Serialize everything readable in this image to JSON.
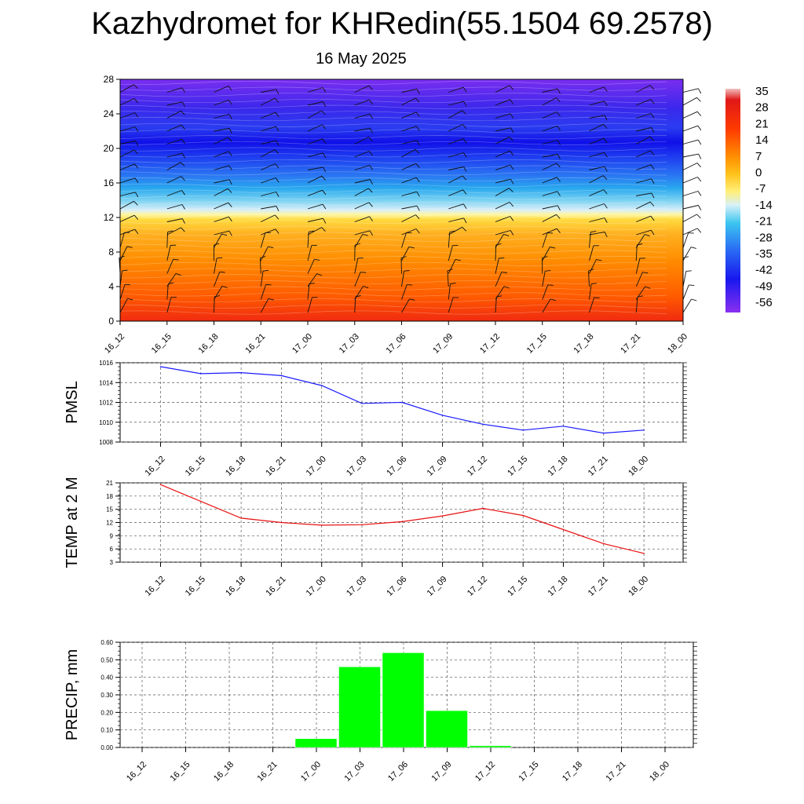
{
  "title": "Kazhydromet for KHRedin(55.1504 69.2578)",
  "subtitle": "16 May 2025",
  "time_labels": [
    "16_12",
    "16_15",
    "16_18",
    "16_21",
    "17_00",
    "17_03",
    "17_06",
    "17_09",
    "17_12",
    "17_15",
    "17_18",
    "17_21",
    "18_00"
  ],
  "colors": {
    "pmsl_line": "#1a1aff",
    "temp_line": "#e81010",
    "precip_bar": "#00ff00",
    "grid": "#555555"
  },
  "chart_data": [
    {
      "type": "heatmap",
      "title": "",
      "xlabel": "",
      "ylabel": "",
      "ylim": [
        0,
        28
      ],
      "y_ticks": [
        "0",
        "4",
        "8",
        "12",
        "16",
        "20",
        "24",
        "28"
      ],
      "categories": [
        "16_12",
        "16_15",
        "16_18",
        "16_21",
        "17_00",
        "17_03",
        "17_06",
        "17_09",
        "17_12",
        "17_15",
        "17_18",
        "17_21",
        "18_00"
      ],
      "colorbar_labels": [
        "35",
        "28",
        "21",
        "14",
        "7",
        "0",
        "-7",
        "-14",
        "-21",
        "-28",
        "-35",
        "-42",
        "-49",
        "-56"
      ],
      "colorbar_range": [
        -60,
        38
      ],
      "temperature_profile": [
        {
          "y": 0,
          "value": 21
        },
        {
          "y": 2,
          "value": 18
        },
        {
          "y": 4,
          "value": 14
        },
        {
          "y": 6,
          "value": 11
        },
        {
          "y": 8,
          "value": 8
        },
        {
          "y": 10,
          "value": 4
        },
        {
          "y": 12,
          "value": 0
        },
        {
          "y": 13,
          "value": -10
        },
        {
          "y": 14,
          "value": -20
        },
        {
          "y": 15,
          "value": -27
        },
        {
          "y": 16,
          "value": -33
        },
        {
          "y": 18,
          "value": -45
        },
        {
          "y": 20,
          "value": -56
        },
        {
          "y": 22,
          "value": -52
        },
        {
          "y": 24,
          "value": -55
        },
        {
          "y": 26,
          "value": -58
        },
        {
          "y": 28,
          "value": -60
        }
      ]
    },
    {
      "type": "line",
      "ylabel": "PMSL",
      "ylim": [
        1008,
        1016
      ],
      "y_ticks": [
        "1008",
        "1010",
        "1012",
        "1014",
        "1016"
      ],
      "x": [
        "16_12",
        "16_15",
        "16_18",
        "16_21",
        "17_00",
        "17_03",
        "17_06",
        "17_09",
        "17_12",
        "17_15",
        "17_18",
        "17_21",
        "18_00"
      ],
      "series": [
        {
          "values": [
            1015.6,
            1014.9,
            1015.0,
            1014.7,
            1013.7,
            1011.9,
            1012.0,
            1010.7,
            1009.8,
            1009.2,
            1009.6,
            1008.9,
            1009.2
          ]
        }
      ]
    },
    {
      "type": "line",
      "ylabel": "TEMP at 2 M",
      "ylim": [
        3,
        21
      ],
      "y_ticks": [
        "3",
        "6",
        "9",
        "12",
        "15",
        "18",
        "21"
      ],
      "x": [
        "16_12",
        "16_15",
        "16_18",
        "16_21",
        "17_00",
        "17_03",
        "17_06",
        "17_09",
        "17_12",
        "17_15",
        "17_18",
        "17_21",
        "18_00"
      ],
      "series": [
        {
          "values": [
            20.6,
            16.8,
            13.0,
            12.0,
            11.4,
            11.5,
            12.2,
            13.5,
            15.2,
            13.6,
            10.4,
            7.2,
            5.0
          ]
        }
      ]
    },
    {
      "type": "bar",
      "ylabel": "PRECIP, mm",
      "ylim": [
        0,
        0.6
      ],
      "y_ticks": [
        "0.00",
        "0.10",
        "0.20",
        "0.30",
        "0.40",
        "0.50",
        "0.60"
      ],
      "categories": [
        "16_12",
        "16_15",
        "16_18",
        "16_21",
        "17_00",
        "17_03",
        "17_06",
        "17_09",
        "17_12",
        "17_15",
        "17_18",
        "17_21",
        "18_00"
      ],
      "values": [
        0,
        0,
        0,
        0,
        0.05,
        0.46,
        0.54,
        0.21,
        0.01,
        0,
        0,
        0,
        0
      ]
    }
  ]
}
